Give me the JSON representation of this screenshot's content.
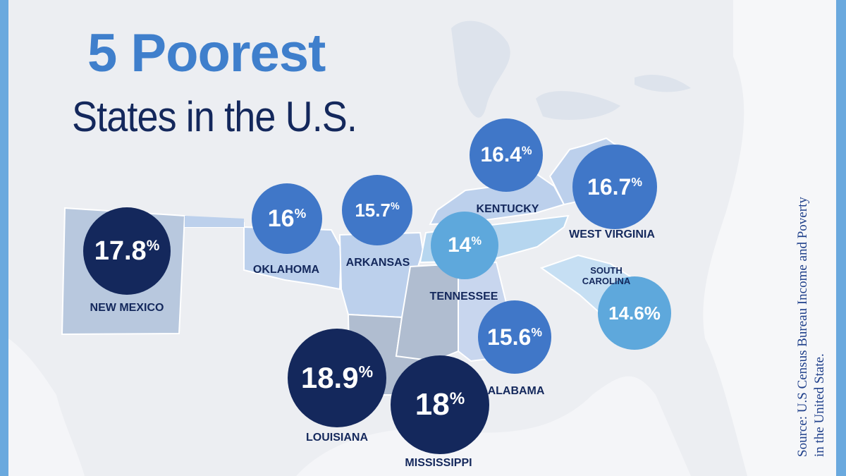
{
  "title": {
    "line1": "5 Poorest",
    "line2": "States in the U.S."
  },
  "source": {
    "line1": "Source: U.S Census Bureau Income and Poverty",
    "line2": "in the United State."
  },
  "colors": {
    "dark": "#14285c",
    "mid": "#4077c8",
    "light": "#5ea8dc",
    "title_blue": "#3f7fcc",
    "frame": "#6aa9de"
  },
  "states": [
    {
      "name": "NEW MEXICO",
      "value": "17.8",
      "unit": "%",
      "tier": "dark"
    },
    {
      "name": "OKLAHOMA",
      "value": "16",
      "unit": "%",
      "tier": "mid"
    },
    {
      "name": "ARKANSAS",
      "value": "15.7",
      "unit": "%",
      "tier": "mid"
    },
    {
      "name": "KENTUCKY",
      "value": "16.4",
      "unit": "%",
      "tier": "mid"
    },
    {
      "name": "WEST VIRGINIA",
      "value": "16.7",
      "unit": "%",
      "tier": "mid"
    },
    {
      "name": "TENNESSEE",
      "value": "14",
      "unit": "%",
      "tier": "light"
    },
    {
      "name": "SOUTH CAROLINA",
      "value": "14.6",
      "unit": "%",
      "tier": "light"
    },
    {
      "name": "ALABAMA",
      "value": "15.6",
      "unit": "%",
      "tier": "mid"
    },
    {
      "name": "LOUISIANA",
      "value": "18.9",
      "unit": "%",
      "tier": "dark"
    },
    {
      "name": "MISSISSIPPI",
      "value": "18",
      "unit": "%",
      "tier": "dark"
    }
  ],
  "south_carolina_label": {
    "line1": "SOUTH",
    "line2": "CAROLINA"
  }
}
